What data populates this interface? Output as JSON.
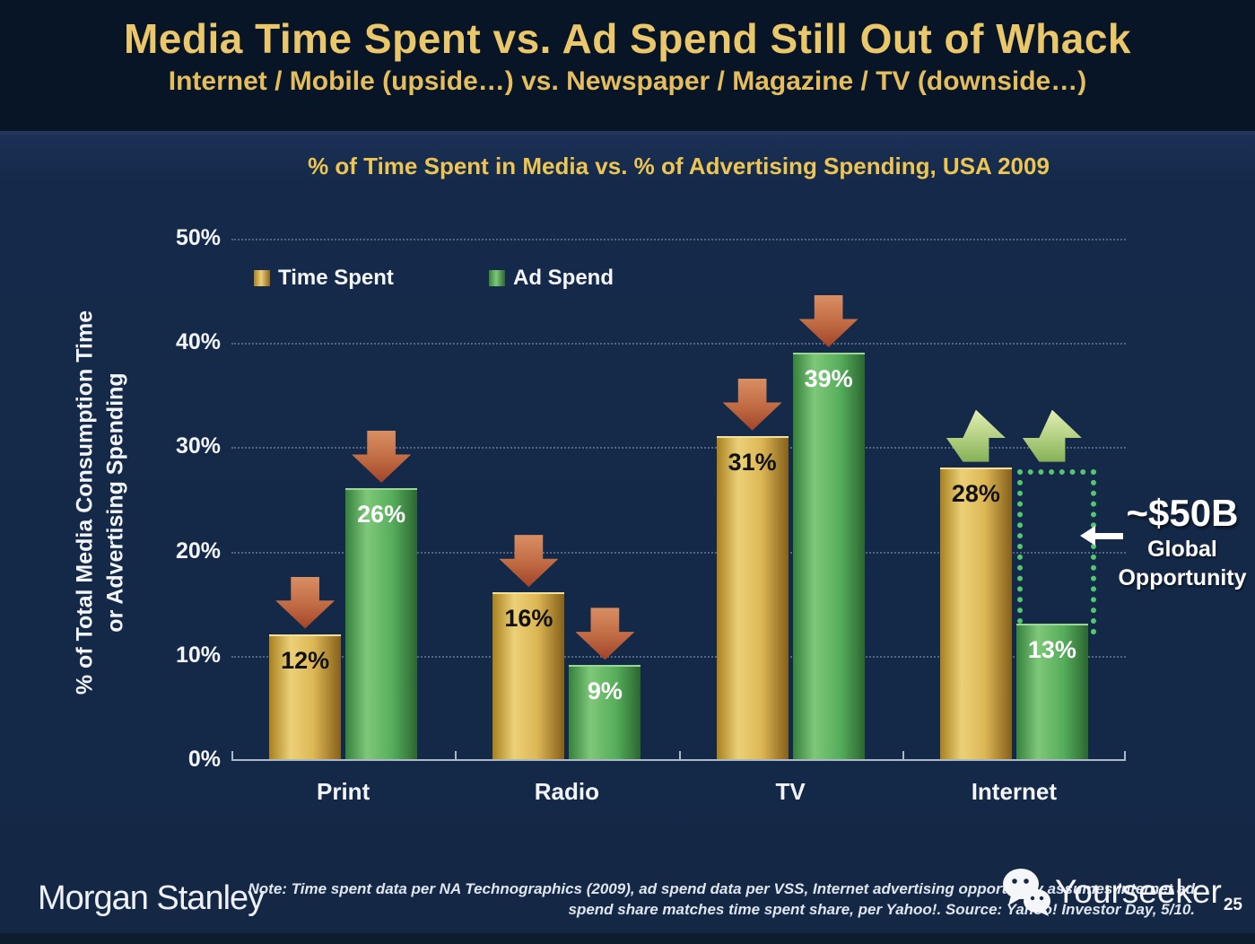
{
  "slide": {
    "title": "Media Time Spent vs. Ad Spend Still Out of Whack",
    "subtitle": "Internet / Mobile (upside…) vs. Newspaper / Magazine / TV (downside…)",
    "page_number": "25"
  },
  "chart_data": {
    "type": "bar",
    "title": "% of Time Spent in Media vs. % of Advertising Spending, USA 2009",
    "ylabel_line1": "% of Total Media Consumption Time",
    "ylabel_line2": "or Advertising Spending",
    "categories": [
      "Print",
      "Radio",
      "TV",
      "Internet"
    ],
    "series": [
      {
        "name": "Time Spent",
        "values": [
          12,
          16,
          31,
          28
        ],
        "bar_class": "bar-gold",
        "label_color": "#121212"
      },
      {
        "name": "Ad Spend",
        "values": [
          26,
          9,
          39,
          13
        ],
        "bar_class": "bar-green",
        "label_color": "#ffffff"
      }
    ],
    "value_labels": [
      [
        "12%",
        "16%",
        "31%",
        "28%"
      ],
      [
        "26%",
        "9%",
        "39%",
        "13%"
      ]
    ],
    "arrow_directions": [
      [
        "down",
        "down",
        "down",
        "up"
      ],
      [
        "down",
        "down",
        "down",
        "up"
      ]
    ],
    "ylim": [
      0,
      50
    ],
    "yticks": [
      "0%",
      "10%",
      "20%",
      "30%",
      "40%",
      "50%"
    ],
    "grid": "horizontal dotted",
    "legend_position": "top-left inside plot",
    "annotation": {
      "value": "~$50B",
      "label_line1": "Global",
      "label_line2": "Opportunity",
      "target": "Internet gap between 13% ad spend and 28% time spent"
    }
  },
  "legend": {
    "items": [
      {
        "label": "Time Spent",
        "color": "#ddb755"
      },
      {
        "label": "Ad Spend",
        "color": "#56ad5b"
      }
    ]
  },
  "footer": {
    "brand": "Morgan Stanley",
    "note_line1": "Note: Time spent data per NA Technographics (2009), ad spend data per VSS, Internet advertising opportunity assumes Internet ad",
    "note_line2": "spend share matches time spent share, per Yahoo!. Source: Yahoo! Investor Day, 5/10.",
    "watermark": "Yourseeker"
  },
  "colors": {
    "background": "#142846",
    "title_band": "#081527",
    "title_gold": "#eac76a",
    "chart_title_gold": "#edc554",
    "bar_gold": "#ddb755",
    "bar_green": "#56ad5b",
    "arrow_red": "#b85a3c",
    "arrow_green": "#b5d284",
    "dotted_rect_green": "#55c571",
    "axis_line": "#aab8ca"
  }
}
